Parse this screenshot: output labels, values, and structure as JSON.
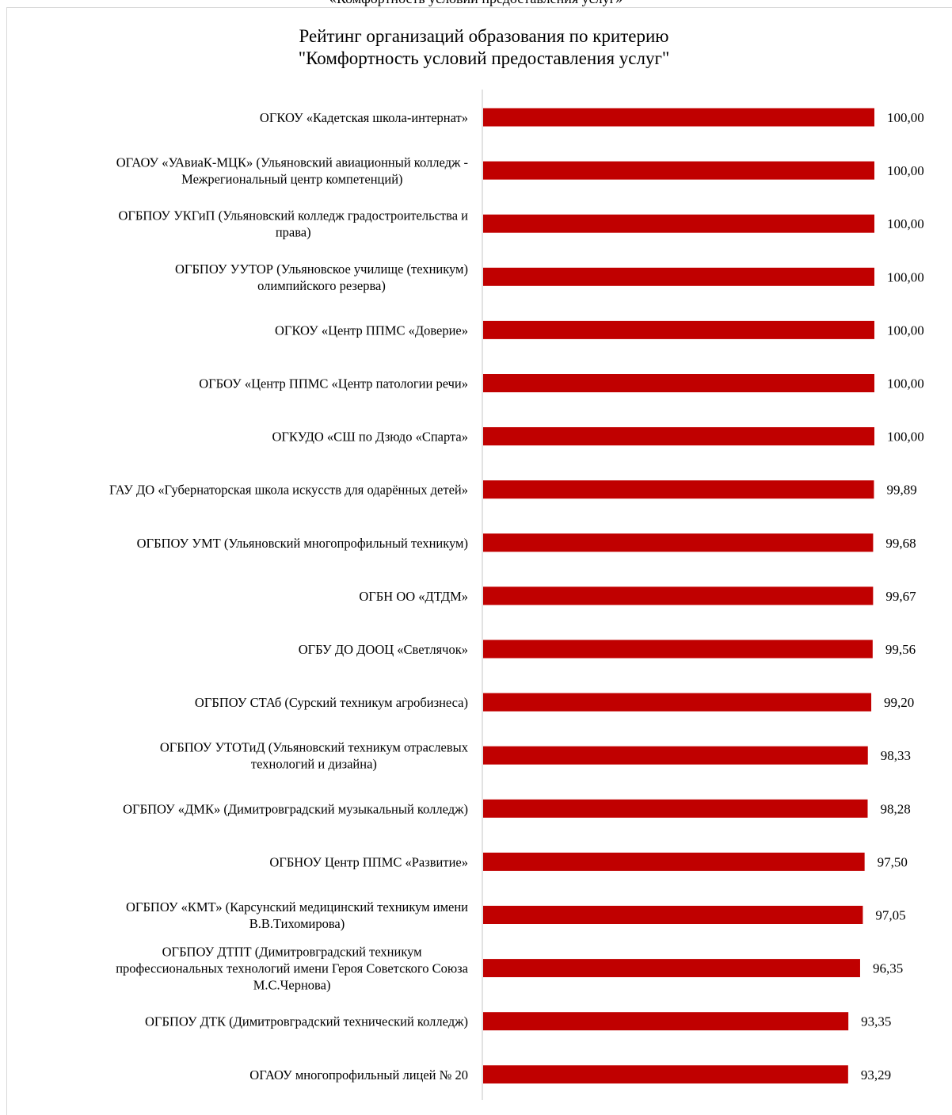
{
  "page": {
    "top_caption": "«Комфортность условий предоставления услуг»"
  },
  "chart_data": {
    "type": "bar",
    "orientation": "horizontal",
    "title": "Рейтинг организаций образования по критерию \"Комфортность условий предоставления услуг\"",
    "title_lines": [
      "Рейтинг организаций образования по критерию",
      "\"Комфортность условий предоставления услуг\""
    ],
    "xlim": [
      0,
      100
    ],
    "grid": false,
    "bar_color": "#c00000",
    "categories": [
      [
        "ОГКОУ «Кадетская школа-интернат»"
      ],
      [
        "ОГАОУ «УАвиаК-МЦК» (Ульяновский авиационный  колледж -",
        "Межрегиональный  центр  компетенций)"
      ],
      [
        "ОГБПОУ УКГиП (Ульяновский колледж градостроительства и",
        "права)"
      ],
      [
        "ОГБПОУ УУТОР (Ульяновское училище (техникум)",
        "олимпийского резерва)"
      ],
      [
        "ОГКОУ «Центр ППМС «Доверие»"
      ],
      [
        "ОГБОУ  «Центр ППМС «Центр патологии  речи»"
      ],
      [
        "ОГКУДО «СШ по Дзюдо «Спарта»"
      ],
      [
        "ГАУ ДО «Губернаторская школа искусств для одарённых  детей»"
      ],
      [
        "ОГБПОУ УМТ (Ульяновский многопрофильный техникум)"
      ],
      [
        "ОГБН ОО «ДТДМ»"
      ],
      [
        "ОГБУ ДО ДООЦ «Светлячок»"
      ],
      [
        "ОГБПОУ СТАб (Сурский техникум агробизнеса)"
      ],
      [
        "ОГБПОУ УТОТиД  (Ульяновский техникум отраслевых",
        "технологий и дизайна)"
      ],
      [
        "ОГБПОУ «ДМК» (Димитровградский музыкальный колледж)"
      ],
      [
        "ОГБНОУ Центр ППМС «Развитие»"
      ],
      [
        "ОГБПОУ «КМТ» (Карсунский  медицинский  техникум имени",
        "В.В.Тихомирова)"
      ],
      [
        "ОГБПОУ ДТПТ (Димитровградский техникум",
        "профессиональных технологий имени Героя Советского Союза",
        "М.С.Чернова)"
      ],
      [
        "ОГБПОУ ДТК (Димитровградский технический колледж)"
      ],
      [
        "ОГАОУ  многопрофильный лицей  № 20"
      ]
    ],
    "values": [
      100.0,
      100.0,
      100.0,
      100.0,
      100.0,
      100.0,
      100.0,
      99.89,
      99.68,
      99.67,
      99.56,
      99.2,
      98.33,
      98.28,
      97.5,
      97.05,
      96.35,
      93.35,
      93.29
    ],
    "value_labels": [
      "100,00",
      "100,00",
      "100,00",
      "100,00",
      "100,00",
      "100,00",
      "100,00",
      "99,89",
      "99,68",
      "99,67",
      "99,56",
      "99,20",
      "98,33",
      "98,28",
      "97,50",
      "97,05",
      "96,35",
      "93,35",
      "93,29"
    ]
  }
}
